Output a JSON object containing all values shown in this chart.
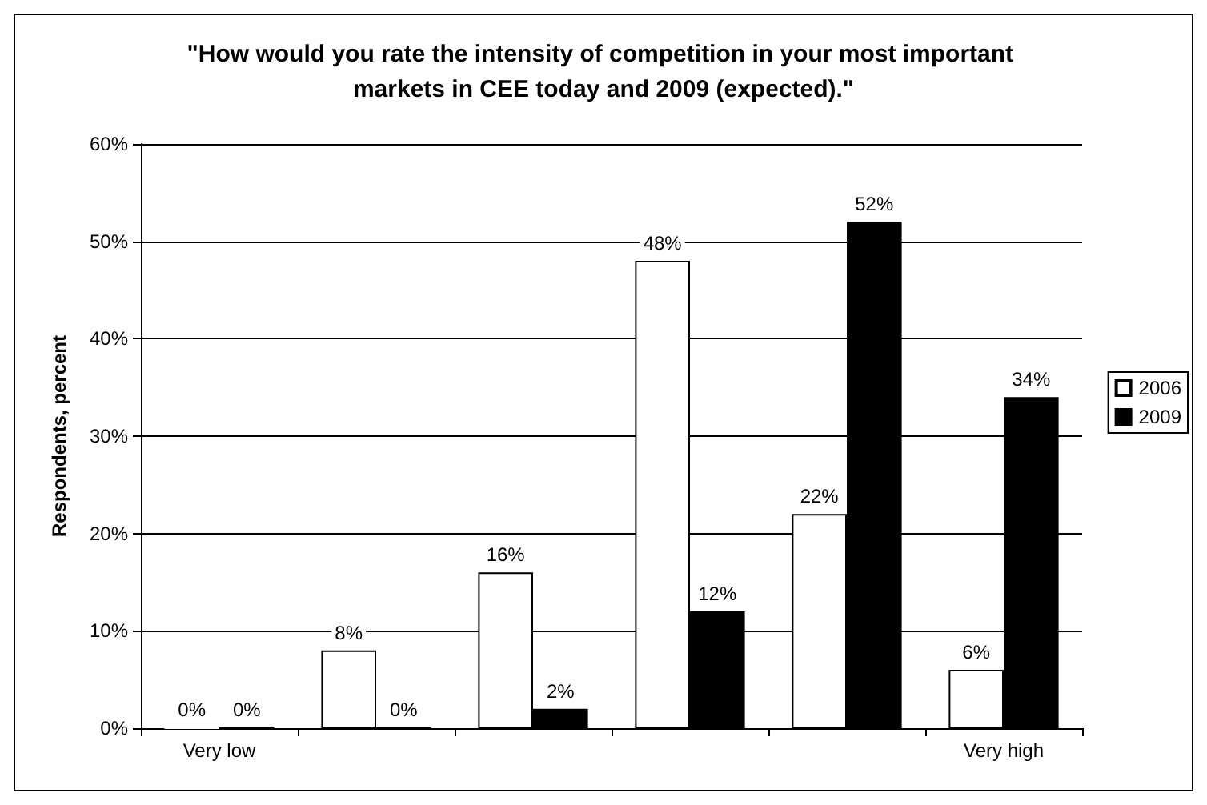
{
  "chart_data": {
    "type": "bar",
    "title": "\"How would you rate the intensity of competition in your most important markets in CEE today and 2009 (expected).\"",
    "ylabel": "Respondents, percent",
    "categories": [
      "Very low",
      null,
      null,
      null,
      null,
      "Very high"
    ],
    "series": [
      {
        "name": "2006",
        "color": "#ffffff",
        "values": [
          0,
          8,
          16,
          48,
          22,
          6
        ],
        "value_labels": [
          "0%",
          "8%",
          "16%",
          "48%",
          "22%",
          "6%"
        ]
      },
      {
        "name": "2009",
        "color": "#000000",
        "values": [
          0,
          0,
          2,
          12,
          52,
          34
        ],
        "value_labels": [
          "0%",
          "0%",
          "2%",
          "12%",
          "52%",
          "34%"
        ]
      }
    ],
    "ylim": [
      0,
      60
    ],
    "yticks": [
      {
        "value": 0,
        "label": "0%"
      },
      {
        "value": 10,
        "label": "10%"
      },
      {
        "value": 20,
        "label": "20%"
      },
      {
        "value": 30,
        "label": "30%"
      },
      {
        "value": 40,
        "label": "40%"
      },
      {
        "value": 50,
        "label": "50%"
      },
      {
        "value": 60,
        "label": "60%"
      }
    ],
    "grid": "y",
    "legend": "right"
  }
}
